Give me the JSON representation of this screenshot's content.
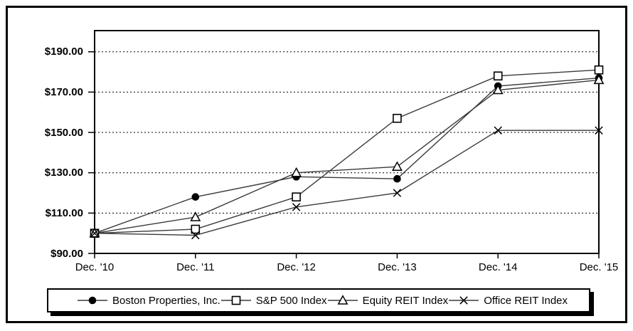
{
  "chart_data": {
    "type": "line",
    "title": "",
    "xlabel": "",
    "ylabel": "",
    "categories": [
      "Dec. '10",
      "Dec. '11",
      "Dec. '12",
      "Dec. '13",
      "Dec. '14",
      "Dec. '15"
    ],
    "series": [
      {
        "name": "Boston Properties, Inc.",
        "marker": "filled-circle",
        "values": [
          100,
          118,
          128,
          127,
          173,
          177
        ]
      },
      {
        "name": "S&P 500 Index",
        "marker": "open-square",
        "values": [
          100,
          102,
          118,
          157,
          178,
          181
        ]
      },
      {
        "name": "Equity REIT Index",
        "marker": "open-triangle",
        "values": [
          100,
          108,
          130,
          133,
          171,
          176
        ]
      },
      {
        "name": "Office REIT Index",
        "marker": "x-cross",
        "values": [
          100,
          99,
          113,
          120,
          151,
          151
        ]
      }
    ],
    "y_axis": {
      "min": 90,
      "max": 200.5,
      "tick_values": [
        90,
        110,
        130,
        150,
        170,
        190
      ],
      "tick_labels": [
        "$90.00",
        "$110.00",
        "$130.00",
        "$150.00",
        "$170.00",
        "$190.00"
      ],
      "gridline_values": [
        110,
        130,
        150,
        170,
        190
      ],
      "grid_style": "dotted"
    },
    "legend_position": "bottom",
    "colors": {
      "line": "#3a3a3a",
      "marker": "#000000",
      "grid": "#000000",
      "axis": "#000000",
      "background": "#ffffff",
      "frame": "#000000"
    }
  }
}
